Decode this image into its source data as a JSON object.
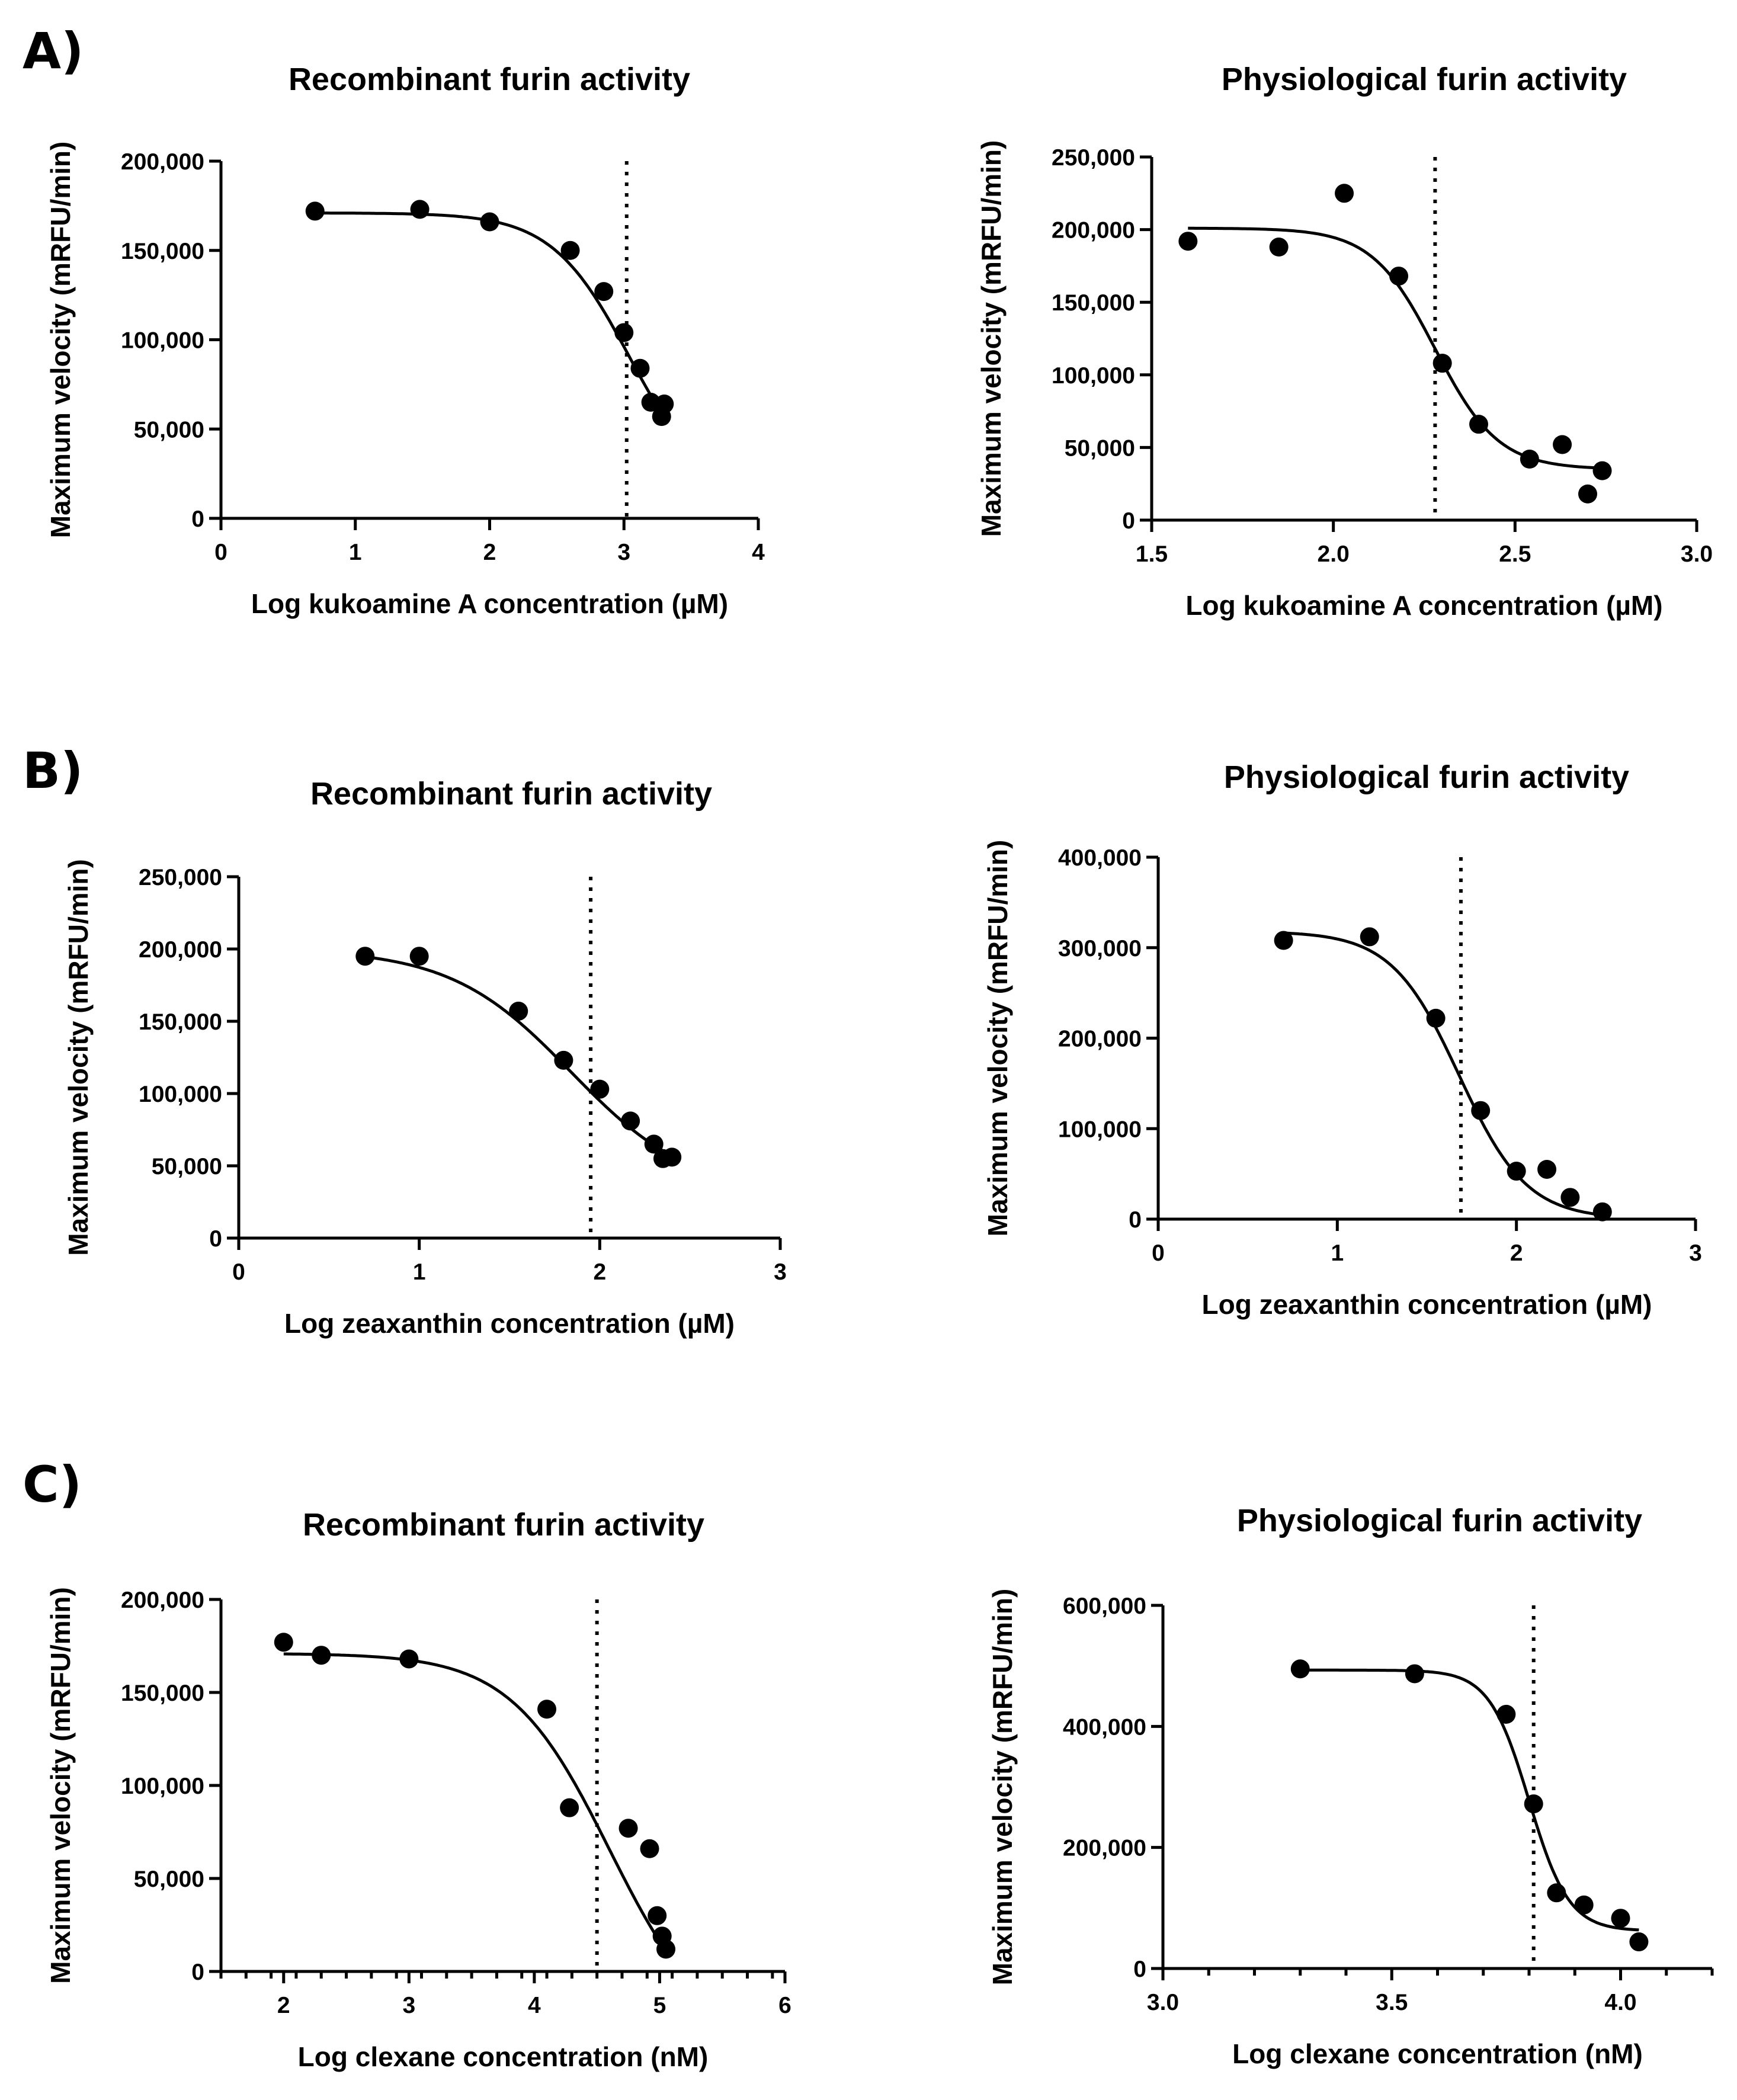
{
  "panel_labels": [
    "A)",
    "B)",
    "C)"
  ],
  "chart_data": [
    {
      "type": "scatter",
      "title": "Recombinant furin activity",
      "xlabel": "Log kukoamine A concentration (µM)",
      "ylabel": "Maximum velocity (mRFU/min)",
      "xlim": [
        0,
        4
      ],
      "ylim": [
        0,
        200000
      ],
      "xticks": [
        0,
        1,
        2,
        3,
        4
      ],
      "xtick_labels": [
        "0",
        "1",
        "2",
        "3",
        "4"
      ],
      "yticks": [
        0,
        50000,
        100000,
        150000,
        200000
      ],
      "ytick_labels": [
        "0",
        "50,000",
        "100,000",
        "150,000",
        "200,000"
      ],
      "minor_xticks_per_major": 0,
      "ic50_x": 3.02,
      "fit": {
        "top": 171000,
        "bottom": 10000,
        "logIC50": 3.04,
        "hill": 1.5
      },
      "points": [
        [
          0.7,
          172000
        ],
        [
          1.48,
          173000
        ],
        [
          2.0,
          166000
        ],
        [
          2.6,
          150000
        ],
        [
          2.85,
          127000
        ],
        [
          3.0,
          104000
        ],
        [
          3.12,
          84000
        ],
        [
          3.2,
          65000
        ],
        [
          3.3,
          64000
        ],
        [
          3.28,
          57000
        ]
      ]
    },
    {
      "type": "scatter",
      "title": "Physiological furin activity",
      "xlabel": "Log kukoamine A concentration (µM)",
      "ylabel": "Maximum velocity (mRFU/min)",
      "xlim": [
        1.5,
        3.0
      ],
      "ylim": [
        0,
        250000
      ],
      "xticks": [
        1.5,
        2.0,
        2.5,
        3.0
      ],
      "xtick_labels": [
        "1.5",
        "2.0",
        "2.5",
        "3.0"
      ],
      "yticks": [
        0,
        50000,
        100000,
        150000,
        200000,
        250000
      ],
      "ytick_labels": [
        "0",
        "50,000",
        "100,000",
        "150,000",
        "200,000",
        "250,000"
      ],
      "minor_xticks_per_major": 0,
      "ic50_x": 2.28,
      "fit": {
        "top": 201000,
        "bottom": 35000,
        "logIC50": 2.28,
        "hill": 5
      },
      "points": [
        [
          1.6,
          192000
        ],
        [
          1.85,
          188000
        ],
        [
          2.03,
          225000
        ],
        [
          2.18,
          168000
        ],
        [
          2.3,
          108000
        ],
        [
          2.4,
          66000
        ],
        [
          2.54,
          42000
        ],
        [
          2.63,
          52000
        ],
        [
          2.7,
          18000
        ],
        [
          2.74,
          34000
        ]
      ]
    },
    {
      "type": "scatter",
      "title": "Recombinant furin activity",
      "xlabel": "Log zeaxanthin concentration (µM)",
      "ylabel": "Maximum velocity (mRFU/min)",
      "xlim": [
        0,
        3
      ],
      "ylim": [
        0,
        250000
      ],
      "xticks": [
        0,
        1,
        2,
        3
      ],
      "xtick_labels": [
        "0",
        "1",
        "2",
        "3"
      ],
      "yticks": [
        0,
        50000,
        100000,
        150000,
        200000,
        250000
      ],
      "ytick_labels": [
        "0",
        "50,000",
        "100,000",
        "150,000",
        "200,000",
        "250,000"
      ],
      "minor_xticks_per_major": 0,
      "ic50_x": 1.95,
      "fit": {
        "top": 200000,
        "bottom": 30000,
        "logIC50": 1.84,
        "hill": 1.3
      },
      "points": [
        [
          0.7,
          195000
        ],
        [
          1.0,
          195000
        ],
        [
          1.55,
          157000
        ],
        [
          1.8,
          123000
        ],
        [
          2.0,
          103000
        ],
        [
          2.17,
          81000
        ],
        [
          2.3,
          65000
        ],
        [
          2.35,
          55000
        ],
        [
          2.4,
          56000
        ]
      ]
    },
    {
      "type": "scatter",
      "title": "Physiological furin activity",
      "xlabel": "Log zeaxanthin concentration (µM)",
      "ylabel": "Maximum velocity (mRFU/min)",
      "xlim": [
        0,
        3
      ],
      "ylim": [
        0,
        400000
      ],
      "xticks": [
        0,
        1,
        2,
        3
      ],
      "xtick_labels": [
        "0",
        "1",
        "2",
        "3"
      ],
      "yticks": [
        0,
        100000,
        200000,
        300000,
        400000
      ],
      "ytick_labels": [
        "0",
        "100,000",
        "200,000",
        "300,000",
        "400,000"
      ],
      "minor_xticks_per_major": 0,
      "ic50_x": 1.69,
      "fit": {
        "top": 318000,
        "bottom": 0,
        "logIC50": 1.68,
        "hill": 2.3
      },
      "points": [
        [
          0.7,
          308000
        ],
        [
          1.18,
          312000
        ],
        [
          1.55,
          222000
        ],
        [
          1.8,
          120000
        ],
        [
          2.0,
          53000
        ],
        [
          2.17,
          55000
        ],
        [
          2.3,
          24000
        ],
        [
          2.48,
          8000
        ]
      ]
    },
    {
      "type": "scatter",
      "title": "Recombinant furin activity",
      "xlabel": "Log clexane concentration (nM)",
      "ylabel": "Maximum velocity (mRFU/min)",
      "xlim": [
        1.5,
        6
      ],
      "ylim": [
        0,
        200000
      ],
      "xticks": [
        2,
        3,
        4,
        5,
        6
      ],
      "xtick_labels": [
        "2",
        "3",
        "4",
        "5",
        "6"
      ],
      "yticks": [
        0,
        50000,
        100000,
        150000,
        200000
      ],
      "ytick_labels": [
        "0",
        "50,000",
        "100,000",
        "150,000",
        "200,000"
      ],
      "minor_xticks_per_major": 4,
      "ic50_x": 4.5,
      "fit": {
        "top": 171000,
        "bottom": -40000,
        "logIC50": 4.6,
        "hill": 1.1
      },
      "points": [
        [
          2.0,
          177000
        ],
        [
          2.3,
          170000
        ],
        [
          3.0,
          168000
        ],
        [
          4.1,
          141000
        ],
        [
          4.28,
          88000
        ],
        [
          4.75,
          77000
        ],
        [
          4.92,
          66000
        ],
        [
          4.98,
          30000
        ],
        [
          5.02,
          19000
        ],
        [
          5.05,
          12000
        ]
      ]
    },
    {
      "type": "scatter",
      "title": "Physiological furin activity",
      "xlabel": "Log clexane concentration (nM)",
      "ylabel": "Maximum velocity (mRFU/min)",
      "xlim": [
        3.0,
        4.2
      ],
      "ylim": [
        0,
        600000
      ],
      "xticks": [
        3.0,
        3.5,
        4.0
      ],
      "xtick_labels": [
        "3.0",
        "3.5",
        "4.0"
      ],
      "yticks": [
        0,
        200000,
        400000,
        600000
      ],
      "ytick_labels": [
        "0",
        "200,000",
        "400,000",
        "600,000"
      ],
      "minor_xticks_per_major": 4,
      "ic50_x": 3.81,
      "fit": {
        "top": 493000,
        "bottom": 62000,
        "logIC50": 3.8,
        "hill": 10
      },
      "points": [
        [
          3.3,
          495000
        ],
        [
          3.55,
          487000
        ],
        [
          3.75,
          420000
        ],
        [
          3.81,
          272000
        ],
        [
          3.86,
          125000
        ],
        [
          3.92,
          105000
        ],
        [
          4.0,
          83000
        ],
        [
          4.04,
          44000
        ]
      ]
    }
  ]
}
